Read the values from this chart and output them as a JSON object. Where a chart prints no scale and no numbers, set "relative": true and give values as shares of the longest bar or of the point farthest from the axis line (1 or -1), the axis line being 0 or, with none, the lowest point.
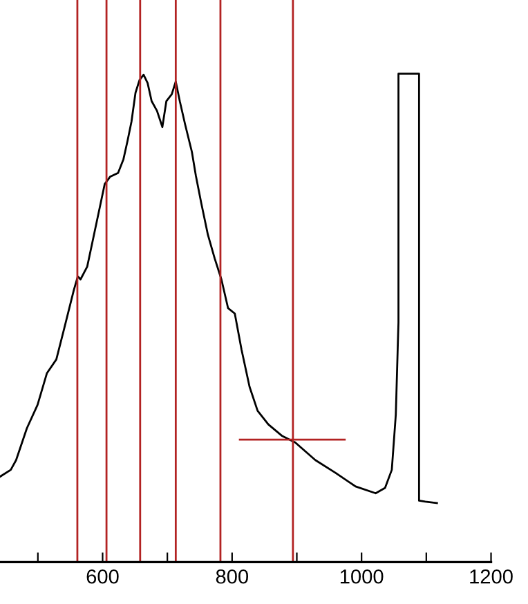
{
  "chart_data": {
    "type": "line",
    "relative": true,
    "xlim": [
      441.5,
      1200
    ],
    "xticks": [
      {
        "value": 500,
        "label": null
      },
      600,
      {
        "value": 700,
        "label": null
      },
      800,
      {
        "value": 900,
        "label": null
      },
      1000,
      {
        "value": 1100,
        "label": null
      },
      1200
    ],
    "tick_labels": "x",
    "grid": false,
    "legend": false,
    "marker": "none",
    "line_style": "solid",
    "series": [
      {
        "color": "#000000",
        "x": [
          441.5,
          458.1,
          466.4,
          483,
          499.5,
          514,
          528.5,
          541,
          555.5,
          561.7,
          565.9,
          576.2,
          586.6,
          597,
          603.2,
          611.5,
          623.9,
          632.2,
          638.4,
          644.6,
          650.8,
          657,
          663.3,
          669.5,
          675.7,
          684,
          692.3,
          698.5,
          706.8,
          713,
          719.2,
          727.5,
          737.9,
          744.1,
          752.4,
          762.7,
          773.1,
          783.5,
          793.8,
          804.2,
          814.6,
          827,
          839.4,
          856,
          876.7,
          897.5,
          928.6,
          959.6,
          990.7,
          1021.8,
          1036.3,
          1046.7,
          1052.9,
          1057,
          1057,
          1088.8,
          1088.8,
          1098.5,
          1116.5
        ],
        "values": [
          0.175,
          0.189,
          0.209,
          0.274,
          0.322,
          0.387,
          0.415,
          0.48,
          0.557,
          0.585,
          0.579,
          0.605,
          0.67,
          0.735,
          0.774,
          0.789,
          0.797,
          0.825,
          0.862,
          0.902,
          0.961,
          0.987,
          0.998,
          0.981,
          0.944,
          0.924,
          0.891,
          0.944,
          0.958,
          0.984,
          0.944,
          0.896,
          0.84,
          0.791,
          0.735,
          0.67,
          0.622,
          0.579,
          0.52,
          0.509,
          0.435,
          0.359,
          0.31,
          0.282,
          0.259,
          0.245,
          0.209,
          0.183,
          0.155,
          0.141,
          0.152,
          0.189,
          0.302,
          0.491,
          1,
          1,
          0.126,
          0.124,
          0.121
        ]
      },
      {
        "type": "line",
        "color": "#b22222",
        "x": [
          812,
          974
        ],
        "values": [
          0.251,
          0.251
        ]
      }
    ],
    "ref_lines": [
      {
        "axis": "x",
        "value": 561,
        "color": "#b22222"
      },
      {
        "axis": "x",
        "value": 606,
        "color": "#b22222"
      },
      {
        "axis": "x",
        "value": 658,
        "color": "#b22222"
      },
      {
        "axis": "x",
        "value": 713,
        "color": "#b22222"
      },
      {
        "axis": "x",
        "value": 782,
        "color": "#b22222"
      },
      {
        "axis": "x",
        "value": 894,
        "color": "#b22222"
      }
    ]
  }
}
